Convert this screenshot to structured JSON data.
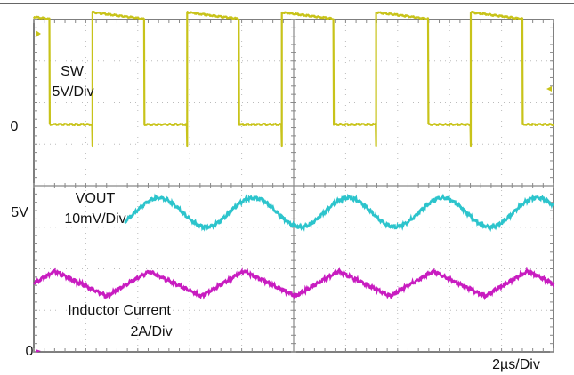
{
  "labels": {
    "sw_name": "SW",
    "sw_scale": "5V/Div",
    "vout_name": "VOUT",
    "vout_scale": "10mV/Div",
    "il_name": "Inductor Current",
    "il_scale": "2A/Div",
    "zero_top": "0",
    "five_v": "5V",
    "zero_bottom": "0",
    "timebase": "2µs/Div"
  },
  "colors": {
    "sw": "#c8c31a",
    "vout": "#2cc4cc",
    "il": "#c81cc0",
    "grid": "#888888",
    "border": "#555555"
  },
  "chart_data": {
    "type": "line",
    "title": "",
    "grid": true,
    "divisions": {
      "x": 10,
      "y": 8
    },
    "xlabel": "2µs/Div",
    "x_range_us": [
      0,
      20
    ],
    "series": [
      {
        "name": "SW",
        "scale": "5V/Div",
        "type": "square",
        "period_us": 3.64,
        "duty": 0.55,
        "first_rise_us": 2.25,
        "low_V": 0,
        "high_V": 13.5
      },
      {
        "name": "VOUT",
        "scale": "10mV/Div",
        "type": "sine",
        "period_us": 3.64,
        "peak_to_peak_mV": 7,
        "visible_from_us": 3.5
      },
      {
        "name": "Inductor Current",
        "scale": "2A/Div",
        "type": "triangle",
        "period_us": 3.64,
        "first_peak_us": 0.8,
        "peak_A": 3.8,
        "valley_A": 2.6
      }
    ]
  }
}
